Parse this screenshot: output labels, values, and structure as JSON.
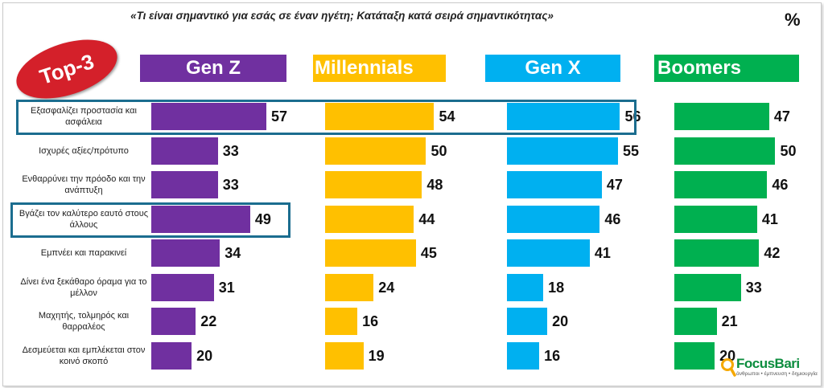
{
  "title": "«Τι είναι σημαντικό για εσάς σε έναν ηγέτη; Κατάταξη κατά σειρά σημαντικότητας»",
  "unit": "%",
  "badge": "Top-3",
  "logo": {
    "name": "FocusBari",
    "tagline": "άνθρωποι • έμπνευση • δημιουργία"
  },
  "colors": {
    "Gen Z": "#7030a0",
    "Millennials": "#ffc000",
    "Gen X": "#00b0f0",
    "Boomers": "#00b050",
    "highlight": "#1b6d8f",
    "badge": "#d4202a"
  },
  "chart_data": {
    "type": "bar",
    "orientation": "horizontal",
    "categories": [
      "Εξασφαλίζει προστασία και ασφάλεια",
      "Ισχυρές αξίες/πρότυπο",
      "Ενθαρρύνει την πρόοδο και την ανάπτυξη",
      "Βγάζει τον καλύτερο εαυτό στους άλλους",
      "Εμπνέει και παρακινεί",
      "Δίνει ένα ξεκάθαρο όραμα για το μέλλον",
      "Μαχητής, τολμηρός και θαρραλέος",
      "Δεσμεύεται και εμπλέκεται στον κοινό σκοπό"
    ],
    "series": [
      {
        "name": "Gen Z",
        "values": [
          57,
          33,
          33,
          49,
          34,
          31,
          22,
          20
        ]
      },
      {
        "name": "Millennials",
        "values": [
          54,
          50,
          48,
          44,
          45,
          24,
          16,
          19
        ]
      },
      {
        "name": "Gen X",
        "values": [
          56,
          55,
          47,
          46,
          41,
          18,
          20,
          16
        ]
      },
      {
        "name": "Boomers",
        "values": [
          47,
          50,
          46,
          41,
          42,
          33,
          21,
          20
        ]
      }
    ],
    "highlighted_categories": [
      0,
      3
    ]
  }
}
